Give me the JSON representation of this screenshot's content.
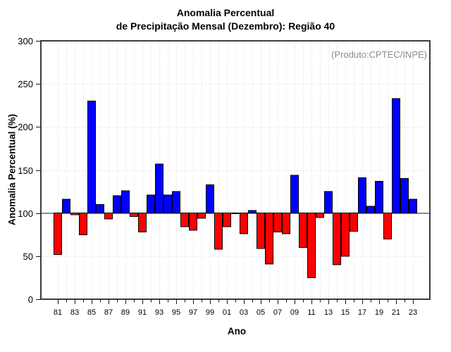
{
  "title": {
    "line1": "Anomalia Percentual",
    "line2": "de Precipitação Mensal (Dezembro): Região 40"
  },
  "annotation": "(Produto:CPTEC/INPE)",
  "chart_data": {
    "type": "bar",
    "title": "Anomalia Percentual de Precipitação Mensal (Dezembro): Região 40",
    "xlabel": "Ano",
    "ylabel": "Anomalia Percentual (%)",
    "ylim": [
      0,
      300
    ],
    "yticks": [
      0,
      50,
      100,
      150,
      200,
      250,
      300
    ],
    "baseline": 100,
    "grid": "dotted vertical line per year, dotted horizontal line per 50 units",
    "legend": "none",
    "categories": [
      "81",
      "82",
      "83",
      "84",
      "85",
      "86",
      "87",
      "88",
      "89",
      "90",
      "91",
      "92",
      "93",
      "94",
      "95",
      "96",
      "97",
      "98",
      "99",
      "00",
      "01",
      "02",
      "03",
      "04",
      "05",
      "06",
      "07",
      "08",
      "09",
      "10",
      "11",
      "12",
      "13",
      "14",
      "15",
      "16",
      "17",
      "18",
      "19",
      "20",
      "21",
      "22",
      "23"
    ],
    "values": [
      52,
      116,
      98,
      75,
      230,
      110,
      93,
      120,
      126,
      96,
      78,
      121,
      157,
      121,
      125,
      84,
      80,
      94,
      133,
      58,
      84,
      100,
      76,
      103,
      59,
      41,
      78,
      76,
      144,
      60,
      25,
      95,
      125,
      40,
      50,
      79,
      141,
      108,
      137,
      70,
      233,
      140,
      116
    ],
    "xtick_labels": [
      "81",
      "83",
      "85",
      "87",
      "89",
      "91",
      "93",
      "95",
      "97",
      "99",
      "01",
      "03",
      "05",
      "07",
      "09",
      "11",
      "13",
      "15",
      "17",
      "19",
      "21",
      "23"
    ],
    "colors": {
      "above_baseline": "#0000ff",
      "below_baseline": "#ff0000",
      "bar_border": "#000000",
      "baseline_line": "#8a8a8a",
      "gridline": "#dcdcdc",
      "frame": "#3c3c3c",
      "tick": "#1a1a1a",
      "annotation_text": "#8c8c8c"
    }
  }
}
